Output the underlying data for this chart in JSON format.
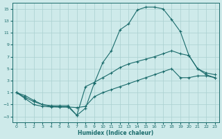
{
  "xlabel": "Humidex (Indice chaleur)",
  "background_color": "#ceeaea",
  "grid_color": "#aad0d0",
  "line_color": "#1a6b6b",
  "xlim": [
    -0.5,
    23.5
  ],
  "ylim": [
    -4,
    16
  ],
  "xticks": [
    0,
    1,
    2,
    3,
    4,
    5,
    6,
    7,
    8,
    9,
    10,
    11,
    12,
    13,
    14,
    15,
    16,
    17,
    18,
    19,
    20,
    21,
    22,
    23
  ],
  "yticks": [
    -3,
    -1,
    1,
    3,
    5,
    7,
    9,
    11,
    13,
    15
  ],
  "line1_x": [
    0,
    1,
    2,
    3,
    4,
    5,
    6,
    7,
    8,
    9,
    10,
    11,
    12,
    13,
    14,
    15,
    16,
    17,
    18,
    19,
    20,
    21,
    22,
    23
  ],
  "line1_y": [
    1,
    0,
    -1,
    -1.3,
    -1.4,
    -1.4,
    -1.4,
    -2.8,
    -1.6,
    2.5,
    6.0,
    8.0,
    11.5,
    12.5,
    14.8,
    15.3,
    15.3,
    15.0,
    13.2,
    11.2,
    7.2,
    5.0,
    4.0,
    3.5
  ],
  "line2_x": [
    0,
    1,
    2,
    3,
    4,
    5,
    6,
    7,
    8,
    9,
    10,
    11,
    12,
    13,
    14,
    15,
    16,
    17,
    18,
    19,
    20,
    21,
    22,
    23
  ],
  "line2_y": [
    1,
    0.5,
    -0.3,
    -1,
    -1.2,
    -1.2,
    -1.2,
    -2.8,
    2.0,
    2.7,
    3.5,
    4.3,
    5.2,
    5.8,
    6.2,
    6.6,
    7.0,
    7.5,
    8.0,
    7.5,
    7.2,
    5.0,
    4.3,
    4.0
  ],
  "line3_x": [
    0,
    1,
    2,
    3,
    4,
    5,
    6,
    7,
    8,
    9,
    10,
    11,
    12,
    13,
    14,
    15,
    16,
    17,
    18,
    19,
    20,
    21,
    22,
    23
  ],
  "line3_y": [
    1,
    0.2,
    -0.5,
    -1,
    -1.3,
    -1.4,
    -1.4,
    -1.5,
    -1.3,
    0.3,
    1.0,
    1.5,
    2.0,
    2.5,
    3.0,
    3.5,
    4.0,
    4.5,
    5.0,
    3.5,
    3.5,
    3.8,
    3.8,
    3.5
  ]
}
